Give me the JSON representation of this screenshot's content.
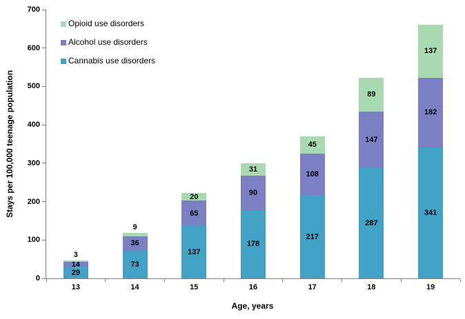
{
  "chart_data": {
    "type": "bar",
    "stacked": true,
    "title": "",
    "xlabel": "Age, years",
    "ylabel": "Stays per 100,000 teenage population",
    "categories": [
      "13",
      "14",
      "15",
      "16",
      "17",
      "18",
      "19"
    ],
    "series": [
      {
        "name": "Cannabis use disorders",
        "color": "#42a2c5",
        "values": [
          29,
          73,
          137,
          178,
          217,
          287,
          341
        ]
      },
      {
        "name": "Alcohol use disorders",
        "color": "#7b7fc4",
        "values": [
          14,
          36,
          65,
          90,
          108,
          147,
          182
        ]
      },
      {
        "name": "Opioid use disorders",
        "color": "#a7dab1",
        "values": [
          3,
          9,
          20,
          31,
          45,
          89,
          137
        ]
      }
    ],
    "totals": [
      46,
      118,
      222,
      299,
      370,
      523,
      660
    ],
    "ylim": [
      0,
      700
    ],
    "y_ticks": [
      0,
      100,
      200,
      300,
      400,
      500,
      600,
      700
    ],
    "legend_position": "top-left",
    "legend_order": [
      "Opioid use disorders",
      "Alcohol use disorders",
      "Cannabis use disorders"
    ],
    "grid": false,
    "axis_color": "#808080",
    "text_color": "#000000",
    "background_color": "#ffffff"
  }
}
